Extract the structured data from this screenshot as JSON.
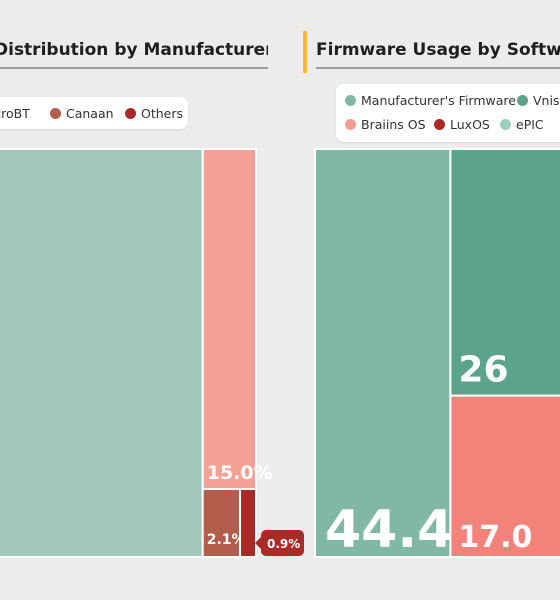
{
  "charts": [
    {
      "title": "Distribution by Manufacturer",
      "legend": [
        {
          "label": "MicroBT",
          "color": "#a2c6b9"
        },
        {
          "label": "Canaan",
          "color": "#b35d4c"
        },
        {
          "label": "Others",
          "color": "#a92a26"
        }
      ]
    },
    {
      "title": "Firmware Usage by Software",
      "legend": [
        {
          "label": "Manufacturer's Firmware",
          "color": "#80b8a5"
        },
        {
          "label": "Vnish",
          "color": "#5ba38b"
        },
        {
          "label": "Braiins OS",
          "color": "#f49d93"
        },
        {
          "label": "LuxOS",
          "color": "#a92a26"
        },
        {
          "label": "ePIC",
          "color": "#9fcdbb"
        }
      ]
    }
  ],
  "chart_data": [
    {
      "type": "treemap",
      "title": "Distribution by Manufacturer",
      "series": [
        {
          "name": "MicroBT",
          "value": 82.0,
          "color": "#a2c6b9"
        },
        {
          "name": "Canaan",
          "value": 2.1,
          "label": "2.1%",
          "color": "#b35d4c"
        },
        {
          "name": "Others",
          "value": 0.9,
          "label": "0.9%",
          "color": "#a92a26"
        }
      ],
      "extra_tiles": [
        {
          "value": 15.0,
          "label": "15.0%",
          "color": "#f5a196"
        }
      ]
    },
    {
      "type": "treemap",
      "title": "Firmware Usage by Software",
      "series": [
        {
          "name": "Manufacturer's Firmware",
          "value": 44.4,
          "label": "44.4%",
          "color": "#80b8a5"
        },
        {
          "name": "Vnish",
          "value": 26.0,
          "label": "26",
          "color": "#5ba38b"
        },
        {
          "name": "Braiins OS",
          "value": 17.0,
          "label": "17.0",
          "color": "#f2827a"
        },
        {
          "name": "LuxOS",
          "value": null,
          "color": "#a92a26"
        },
        {
          "name": "ePIC",
          "value": null,
          "color": "#9fcdbb"
        }
      ]
    }
  ]
}
